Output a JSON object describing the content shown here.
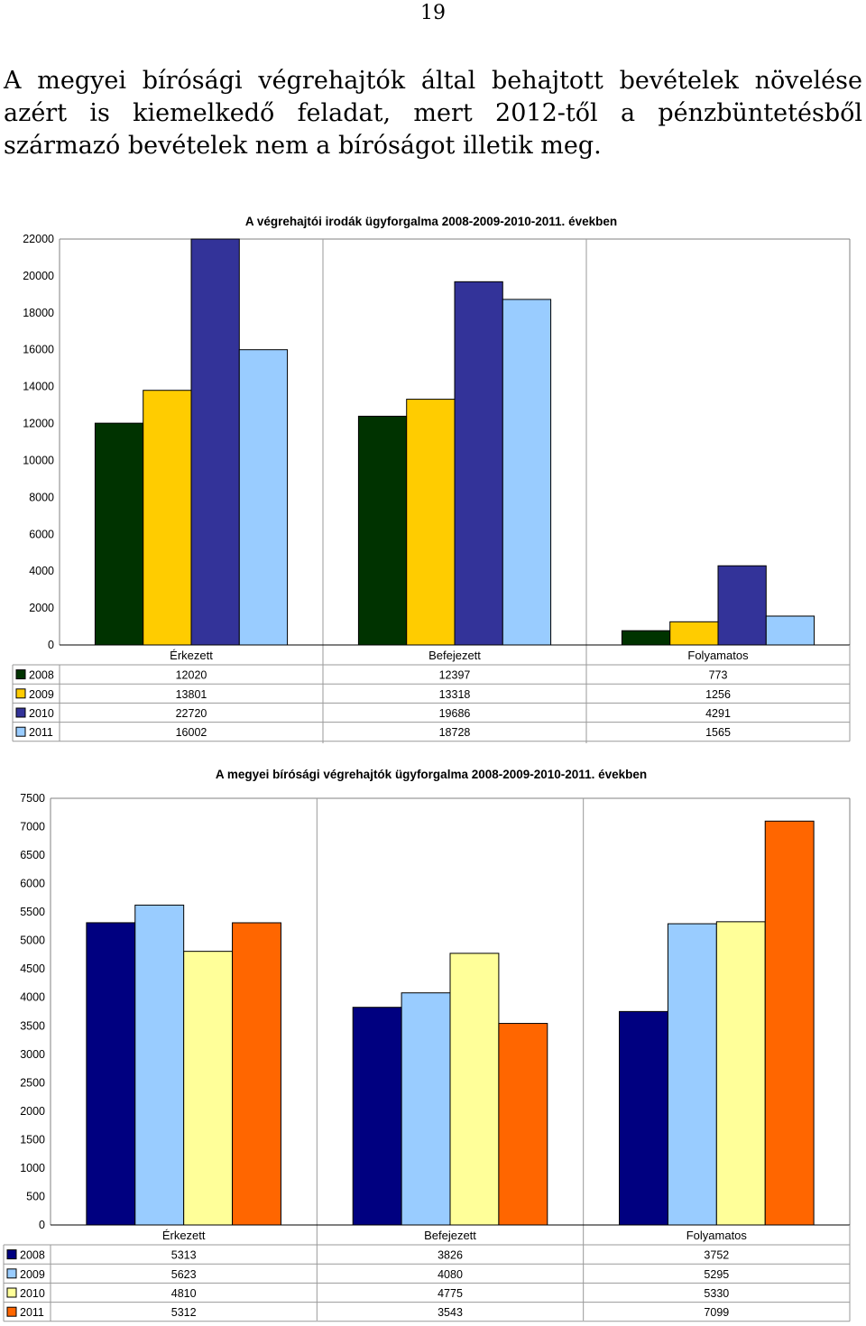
{
  "page": {
    "number": "19",
    "paragraph": "A megyei bírósági végrehajtók által behajtott bevételek növelése azért is kiemelkedő feladat, mert 2012-től a pénzbüntetésből származó bevételek nem a bíróságot illetik meg."
  },
  "chart_data": [
    {
      "type": "bar",
      "title": "A végrehajtói irodák ügyforgalma 2008-2009-2010-2011. években",
      "categories": [
        "Érkezett",
        "Befejezett",
        "Folyamatos"
      ],
      "ylim": [
        0,
        22000
      ],
      "yticks": [
        0,
        2000,
        4000,
        6000,
        8000,
        10000,
        12000,
        14000,
        16000,
        18000,
        20000,
        22000
      ],
      "grid": "vertical separators between categories",
      "legend": "data table below chart",
      "series": [
        {
          "name": "2008",
          "color": "#003300",
          "values": [
            12020,
            12397,
            773
          ]
        },
        {
          "name": "2009",
          "color": "#FFCC00",
          "values": [
            13801,
            13318,
            1256
          ]
        },
        {
          "name": "2010",
          "color": "#333399",
          "values": [
            22720,
            19686,
            4291
          ]
        },
        {
          "name": "2011",
          "color": "#99CCFF",
          "values": [
            16002,
            18728,
            1565
          ]
        }
      ]
    },
    {
      "type": "bar",
      "title": "A megyei bírósági végrehajtók ügyforgalma 2008-2009-2010-2011. években",
      "categories": [
        "Érkezett",
        "Befejezett",
        "Folyamatos"
      ],
      "ylim": [
        0,
        7500
      ],
      "yticks": [
        0,
        500,
        1000,
        1500,
        2000,
        2500,
        3000,
        3500,
        4000,
        4500,
        5000,
        5500,
        6000,
        6500,
        7000,
        7500
      ],
      "grid": "vertical separators between categories",
      "legend": "data table below chart",
      "series": [
        {
          "name": "2008",
          "color": "#000080",
          "values": [
            5313,
            3826,
            3752
          ]
        },
        {
          "name": "2009",
          "color": "#99CCFF",
          "values": [
            5623,
            4080,
            5295
          ]
        },
        {
          "name": "2010",
          "color": "#FFFF99",
          "values": [
            4810,
            4775,
            5330
          ]
        },
        {
          "name": "2011",
          "color": "#FF6600",
          "values": [
            5312,
            3543,
            7099
          ]
        }
      ]
    }
  ]
}
